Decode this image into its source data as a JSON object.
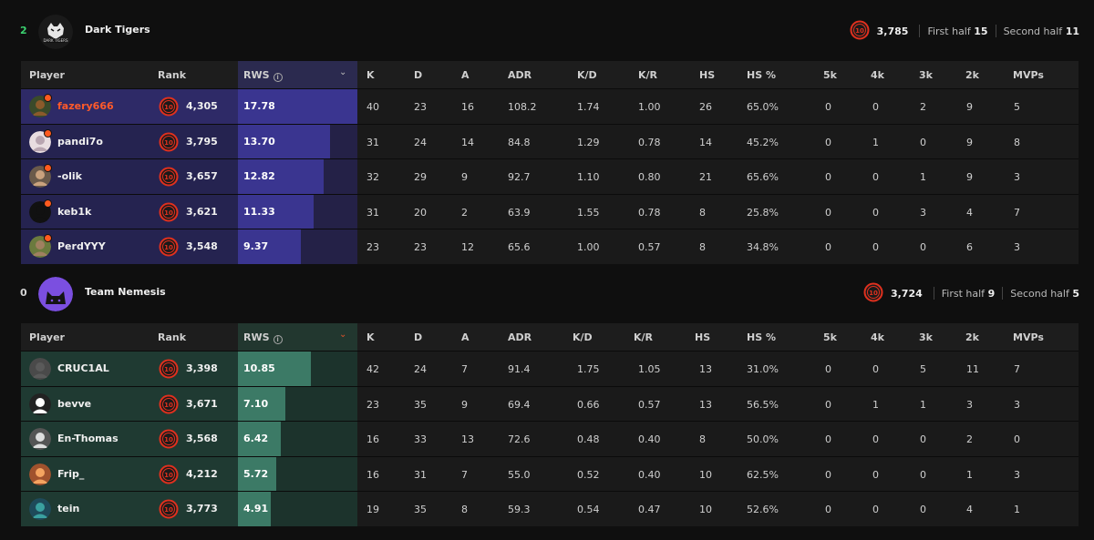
{
  "columns": [
    "Player",
    "Rank",
    "RWS",
    "K",
    "D",
    "A",
    "ADR",
    "K/D",
    "K/R",
    "HS",
    "HS %",
    "5k",
    "4k",
    "3k",
    "2k",
    "MVPs"
  ],
  "teams": [
    {
      "score": "2",
      "name": "Dark Tigers",
      "logo_icon": "tiger-logo",
      "score_color": "#3bd16f",
      "avg_level": "10",
      "avg_elo": "3,785",
      "first_half_label": "First half",
      "first_half": "15",
      "second_half_label": "Second half",
      "second_half": "11",
      "players": [
        {
          "name": "fazery666",
          "name_color": "#ff5a2a",
          "level": "10",
          "elo": "4,305",
          "rws": "17.78",
          "rws_num": 17.78,
          "k": "40",
          "d": "23",
          "a": "16",
          "adr": "108.2",
          "kd": "1.74",
          "kr": "1.00",
          "hs": "26",
          "hsp": "65.0%",
          "k5": "0",
          "k4": "0",
          "k3": "2",
          "k2": "9",
          "mvps": "5"
        },
        {
          "name": "pandi7o",
          "level": "10",
          "elo": "3,795",
          "rws": "13.70",
          "rws_num": 13.7,
          "k": "31",
          "d": "24",
          "a": "14",
          "adr": "84.8",
          "kd": "1.29",
          "kr": "0.78",
          "hs": "14",
          "hsp": "45.2%",
          "k5": "0",
          "k4": "1",
          "k3": "0",
          "k2": "9",
          "mvps": "8"
        },
        {
          "name": "-olik",
          "level": "10",
          "elo": "3,657",
          "rws": "12.82",
          "rws_num": 12.82,
          "k": "32",
          "d": "29",
          "a": "9",
          "adr": "92.7",
          "kd": "1.10",
          "kr": "0.80",
          "hs": "21",
          "hsp": "65.6%",
          "k5": "0",
          "k4": "0",
          "k3": "1",
          "k2": "9",
          "mvps": "3"
        },
        {
          "name": "keb1k",
          "level": "10",
          "elo": "3,621",
          "rws": "11.33",
          "rws_num": 11.33,
          "k": "31",
          "d": "20",
          "a": "2",
          "adr": "63.9",
          "kd": "1.55",
          "kr": "0.78",
          "hs": "8",
          "hsp": "25.8%",
          "k5": "0",
          "k4": "0",
          "k3": "3",
          "k2": "4",
          "mvps": "7"
        },
        {
          "name": "PerdYYY",
          "level": "10",
          "elo": "3,548",
          "rws": "9.37",
          "rws_num": 9.37,
          "k": "23",
          "d": "23",
          "a": "12",
          "adr": "65.6",
          "kd": "1.00",
          "kr": "0.57",
          "hs": "8",
          "hsp": "34.8%",
          "k5": "0",
          "k4": "0",
          "k3": "0",
          "k2": "6",
          "mvps": "3"
        }
      ]
    },
    {
      "score": "0",
      "name": "Team Nemesis",
      "logo_icon": "cat-logo",
      "score_color": "#d6d6d6",
      "avg_level": "10",
      "avg_elo": "3,724",
      "first_half_label": "First half",
      "first_half": "9",
      "second_half_label": "Second half",
      "second_half": "5",
      "players": [
        {
          "name": "CRUC1AL",
          "level": "10",
          "elo": "3,398",
          "rws": "10.85",
          "rws_num": 10.85,
          "k": "42",
          "d": "24",
          "a": "7",
          "adr": "91.4",
          "kd": "1.75",
          "kr": "1.05",
          "hs": "13",
          "hsp": "31.0%",
          "k5": "0",
          "k4": "0",
          "k3": "5",
          "k2": "11",
          "mvps": "7"
        },
        {
          "name": "bevve",
          "level": "10",
          "elo": "3,671",
          "rws": "7.10",
          "rws_num": 7.1,
          "k": "23",
          "d": "35",
          "a": "9",
          "adr": "69.4",
          "kd": "0.66",
          "kr": "0.57",
          "hs": "13",
          "hsp": "56.5%",
          "k5": "0",
          "k4": "1",
          "k3": "1",
          "k2": "3",
          "mvps": "3"
        },
        {
          "name": "En-Thomas",
          "level": "10",
          "elo": "3,568",
          "rws": "6.42",
          "rws_num": 6.42,
          "k": "16",
          "d": "33",
          "a": "13",
          "adr": "72.6",
          "kd": "0.48",
          "kr": "0.40",
          "hs": "8",
          "hsp": "50.0%",
          "k5": "0",
          "k4": "0",
          "k3": "0",
          "k2": "2",
          "mvps": "0"
        },
        {
          "name": "Frip_",
          "level": "10",
          "elo": "4,212",
          "rws": "5.72",
          "rws_num": 5.72,
          "k": "16",
          "d": "31",
          "a": "7",
          "adr": "55.0",
          "kd": "0.52",
          "kr": "0.40",
          "hs": "10",
          "hsp": "62.5%",
          "k5": "0",
          "k4": "0",
          "k3": "0",
          "k2": "1",
          "mvps": "3"
        },
        {
          "name": "tein",
          "level": "10",
          "elo": "3,773",
          "rws": "4.91",
          "rws_num": 4.91,
          "k": "19",
          "d": "35",
          "a": "8",
          "adr": "59.3",
          "kd": "0.54",
          "kr": "0.47",
          "hs": "10",
          "hsp": "52.6%",
          "k5": "0",
          "k4": "0",
          "k3": "0",
          "k2": "4",
          "mvps": "1"
        }
      ]
    }
  ]
}
